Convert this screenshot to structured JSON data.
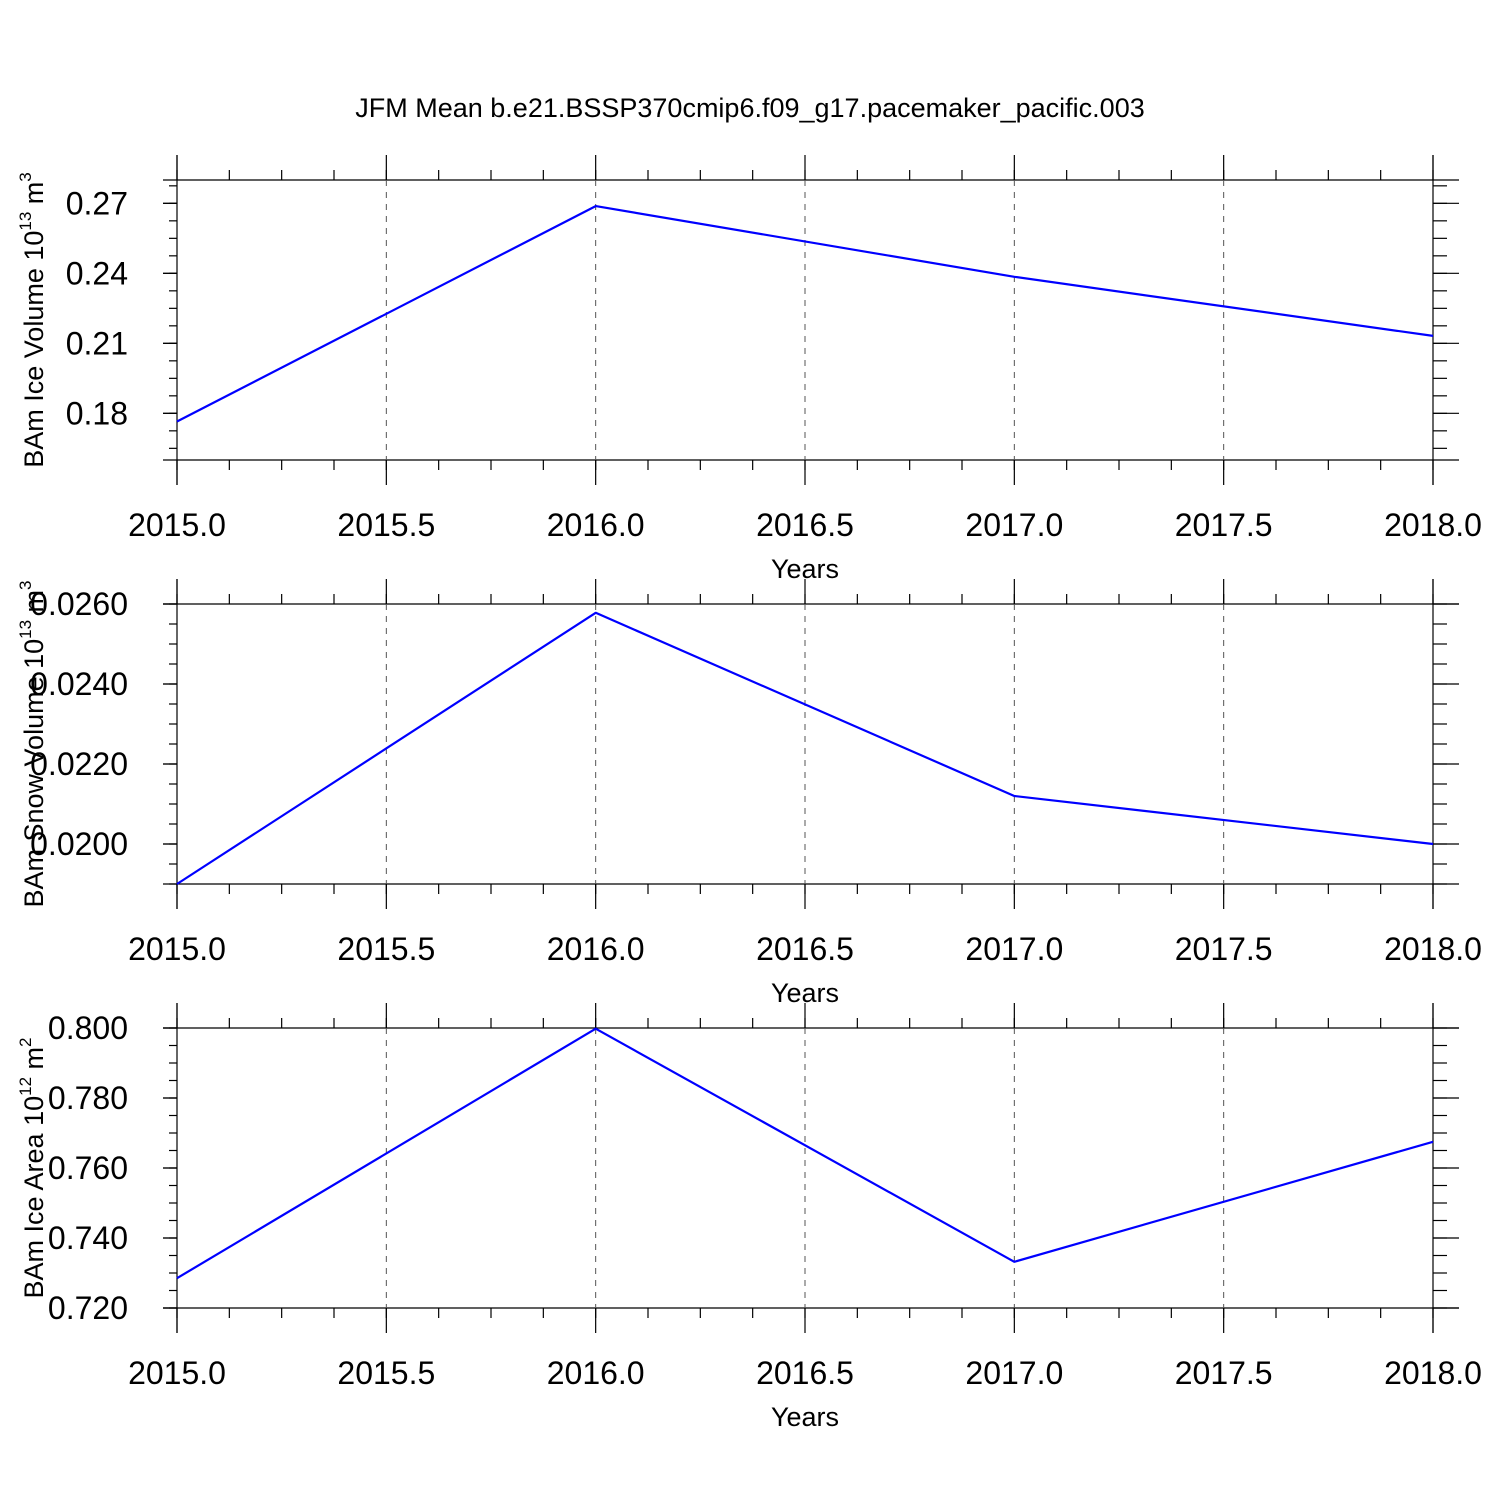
{
  "title": "JFM Mean b.e21.BSSP370cmip6.f09_g17.pacemaker_pacific.003",
  "colors": {
    "line": "#0000ff",
    "axis": "#000000",
    "grid": "#555555"
  },
  "chart_data": [
    {
      "type": "line",
      "xlabel": "Years",
      "ylabel": "BAm Ice Volume 10",
      "ylabel_sup": "13",
      "ylabel_unit": " m",
      "ylabel_unit_sup": "3",
      "xlim": [
        2015.0,
        2018.0
      ],
      "ylim": [
        0.16,
        0.28
      ],
      "x_ticks": [
        "2015.0",
        "2015.5",
        "2016.0",
        "2016.5",
        "2017.0",
        "2017.5",
        "2018.0"
      ],
      "y_ticks": [
        "0.18",
        "0.21",
        "0.24",
        "0.27"
      ],
      "grid": "vertical-dashed",
      "series": [
        {
          "x": [
            2015.0,
            2016.0,
            2017.0,
            2018.0
          ],
          "values": [
            0.1765,
            0.2688,
            0.2385,
            0.2132
          ]
        }
      ]
    },
    {
      "type": "line",
      "xlabel": "Years",
      "ylabel": "BAm Snow Volume 10",
      "ylabel_sup": "13",
      "ylabel_unit": " m",
      "ylabel_unit_sup": "3",
      "xlim": [
        2015.0,
        2018.0
      ],
      "ylim": [
        0.019,
        0.026
      ],
      "x_ticks": [
        "2015.0",
        "2015.5",
        "2016.0",
        "2016.5",
        "2017.0",
        "2017.5",
        "2018.0"
      ],
      "y_ticks": [
        "0.0200",
        "0.0220",
        "0.0240",
        "0.0260"
      ],
      "grid": "vertical-dashed",
      "series": [
        {
          "x": [
            2015.0,
            2016.0,
            2017.0,
            2018.0
          ],
          "values": [
            0.019,
            0.02578,
            0.0212,
            0.02
          ]
        }
      ]
    },
    {
      "type": "line",
      "xlabel": "Years",
      "ylabel": "BAm Ice Area 10",
      "ylabel_sup": "12",
      "ylabel_unit": " m",
      "ylabel_unit_sup": "2",
      "xlim": [
        2015.0,
        2018.0
      ],
      "ylim": [
        0.72,
        0.8
      ],
      "x_ticks": [
        "2015.0",
        "2015.5",
        "2016.0",
        "2016.5",
        "2017.0",
        "2017.5",
        "2018.0"
      ],
      "y_ticks": [
        "0.720",
        "0.740",
        "0.760",
        "0.780",
        "0.800"
      ],
      "grid": "vertical-dashed",
      "series": [
        {
          "x": [
            2015.0,
            2016.0,
            2017.0,
            2018.0
          ],
          "values": [
            0.7285,
            0.7998,
            0.7332,
            0.7675
          ]
        }
      ]
    }
  ]
}
